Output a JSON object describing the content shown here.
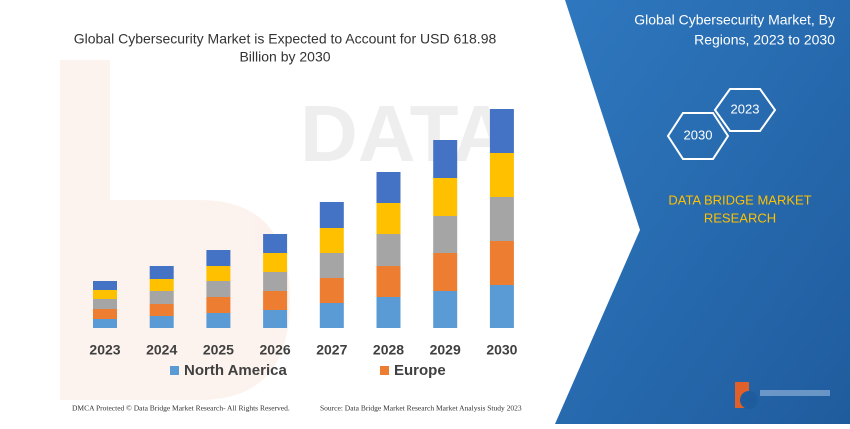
{
  "chart_data": {
    "type": "bar",
    "title": [
      "Global Cybersecurity Market is Expected to Account for USD 618.98",
      "Billion by 2030"
    ],
    "categories": [
      "2023",
      "2024",
      "2025",
      "2026",
      "2027",
      "2028",
      "2029",
      "2030"
    ],
    "series": [
      {
        "name": "North America",
        "color": "#5b9bd5",
        "values": [
          9,
          12,
          15,
          18,
          25,
          31,
          37,
          43
        ]
      },
      {
        "name": "Europe",
        "color": "#ed7d31",
        "values": [
          10,
          12,
          16,
          19,
          25,
          31,
          38,
          44
        ]
      },
      {
        "color": "#a5a5a5",
        "values": [
          10,
          13,
          16,
          19,
          25,
          32,
          37,
          44
        ]
      },
      {
        "color": "#ffc000",
        "values": [
          9,
          12,
          15,
          19,
          25,
          31,
          38,
          44
        ]
      },
      {
        "color": "#4472c4",
        "values": [
          9,
          13,
          16,
          19,
          26,
          31,
          38,
          44
        ]
      }
    ]
  },
  "side_panel": {
    "title": [
      "Global Cybersecurity Market, By",
      "Regions, 2023 to 2030"
    ],
    "hexagons": [
      "2030",
      "2023"
    ],
    "brand": [
      "DATA BRIDGE MARKET",
      "RESEARCH"
    ]
  },
  "footer": {
    "left": "DMCA Protected © Data Bridge Market Research- All Rights Reserved.",
    "right": "Source: Data Bridge Market Research Market Analysis Study 2023"
  }
}
